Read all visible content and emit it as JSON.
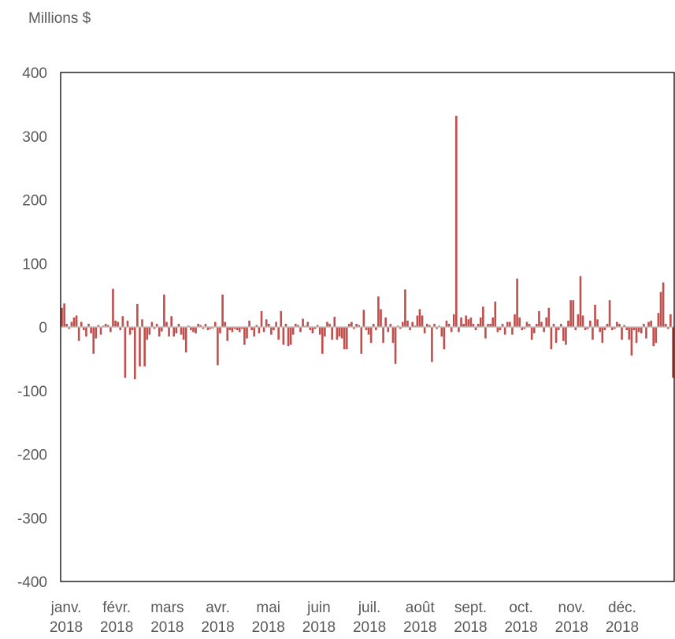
{
  "chart_data": {
    "type": "bar",
    "title": "",
    "ylabel": "Millions $",
    "xlabel": "",
    "ylim": [
      -400,
      400
    ],
    "yticks": [
      400,
      300,
      200,
      100,
      0,
      -100,
      -200,
      -300,
      -400
    ],
    "grid": false,
    "x_tick_labels": [
      {
        "month": "janv.",
        "year": "2018"
      },
      {
        "month": "févr.",
        "year": "2018"
      },
      {
        "month": "mars",
        "year": "2018"
      },
      {
        "month": "avr.",
        "year": "2018"
      },
      {
        "month": "mai",
        "year": "2018"
      },
      {
        "month": "juin",
        "year": "2018"
      },
      {
        "month": "juil.",
        "year": "2018"
      },
      {
        "month": "août",
        "year": "2018"
      },
      {
        "month": "sept.",
        "year": "2018"
      },
      {
        "month": "oct.",
        "year": "2018"
      },
      {
        "month": "nov.",
        "year": "2018"
      },
      {
        "month": "déc.",
        "year": "2018"
      }
    ],
    "series": [
      {
        "color": "#c0504d",
        "values": [
          30,
          37,
          5,
          -3,
          8,
          15,
          18,
          -22,
          8,
          -5,
          -15,
          5,
          -10,
          -42,
          -18,
          3,
          -12,
          2,
          5,
          3,
          -8,
          60,
          10,
          8,
          -5,
          17,
          -80,
          10,
          -12,
          -5,
          -82,
          36,
          -62,
          12,
          -62,
          -20,
          -12,
          8,
          -3,
          5,
          -15,
          -7,
          51,
          8,
          -15,
          17,
          -15,
          -10,
          5,
          -12,
          -20,
          -40,
          2,
          -5,
          -8,
          -10,
          5,
          3,
          -3,
          5,
          -5,
          -3,
          -2,
          8,
          -60,
          -10,
          51,
          8,
          -22,
          -5,
          -8,
          -3,
          -5,
          -8,
          -3,
          -28,
          -18,
          10,
          -5,
          -15,
          3,
          -10,
          25,
          -8,
          12,
          5,
          -12,
          -5,
          8,
          -20,
          25,
          -28,
          5,
          -30,
          -28,
          -12,
          5,
          3,
          -8,
          13,
          2,
          8,
          -5,
          -10,
          -3,
          3,
          -12,
          -42,
          -15,
          8,
          5,
          -20,
          16,
          -20,
          -15,
          -18,
          -35,
          -35,
          5,
          8,
          -3,
          5,
          3,
          -42,
          27,
          -5,
          -12,
          -25,
          5,
          -5,
          48,
          28,
          -25,
          15,
          -8,
          5,
          -25,
          -58,
          2,
          -3,
          8,
          59,
          10,
          -5,
          8,
          2,
          18,
          28,
          18,
          -10,
          5,
          3,
          -55,
          5,
          -3,
          2,
          -15,
          -35,
          10,
          5,
          -8,
          20,
          332,
          -8,
          15,
          5,
          18,
          12,
          15,
          5,
          -5,
          5,
          15,
          32,
          -18,
          5,
          5,
          15,
          40,
          -8,
          -5,
          5,
          -12,
          8,
          8,
          -12,
          20,
          76,
          15,
          -5,
          -3,
          8,
          5,
          -20,
          -10,
          5,
          25,
          8,
          -8,
          15,
          30,
          -35,
          5,
          -25,
          -5,
          5,
          -22,
          -28,
          10,
          42,
          42,
          -5,
          20,
          80,
          18,
          -5,
          -3,
          10,
          -20,
          35,
          12,
          -8,
          -25,
          -5,
          5,
          42,
          -5,
          -3,
          8,
          5,
          -20,
          3,
          -5,
          -20,
          -45,
          -5,
          -25,
          -8,
          -10,
          5,
          -18,
          8,
          10,
          -30,
          -25,
          22,
          55,
          70,
          5,
          -3,
          20,
          -80
        ]
      }
    ]
  }
}
